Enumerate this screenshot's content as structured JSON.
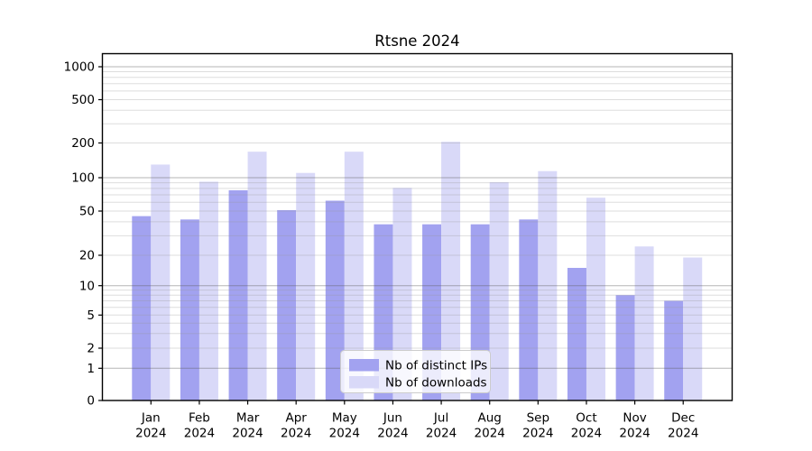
{
  "title": "Rtsne 2024",
  "chart_data": {
    "type": "bar",
    "title": "Rtsne 2024",
    "categories": [
      "Jan",
      "Feb",
      "Mar",
      "Apr",
      "May",
      "Jun",
      "Jul",
      "Aug",
      "Sep",
      "Oct",
      "Nov",
      "Dec"
    ],
    "category_year": "2024",
    "series": [
      {
        "name": "Nb of distinct IPs",
        "color": "#a2a2f0",
        "values": [
          45,
          42,
          77,
          51,
          62,
          38,
          38,
          38,
          42,
          15,
          8,
          7
        ]
      },
      {
        "name": "Nb of downloads",
        "color": "#d9d9f8",
        "values": [
          130,
          92,
          168,
          110,
          168,
          81,
          205,
          91,
          114,
          66,
          24,
          19
        ]
      }
    ],
    "yticks": [
      0,
      1,
      2,
      5,
      10,
      20,
      50,
      100,
      200,
      500,
      1000
    ],
    "ylim": [
      0,
      1300
    ],
    "yscale": "pseudo-log (linear below 1, log above)",
    "xlabel": "",
    "ylabel": "",
    "grid": true,
    "legend_position": "lower center inside plot",
    "colors": {
      "background": "#ffffff",
      "axis": "#000000",
      "major_grid": "#b4b4b4",
      "minor_grid": "#e6e6e6",
      "legend_border": "#cccccc",
      "legend_background": "#ffffff"
    }
  }
}
